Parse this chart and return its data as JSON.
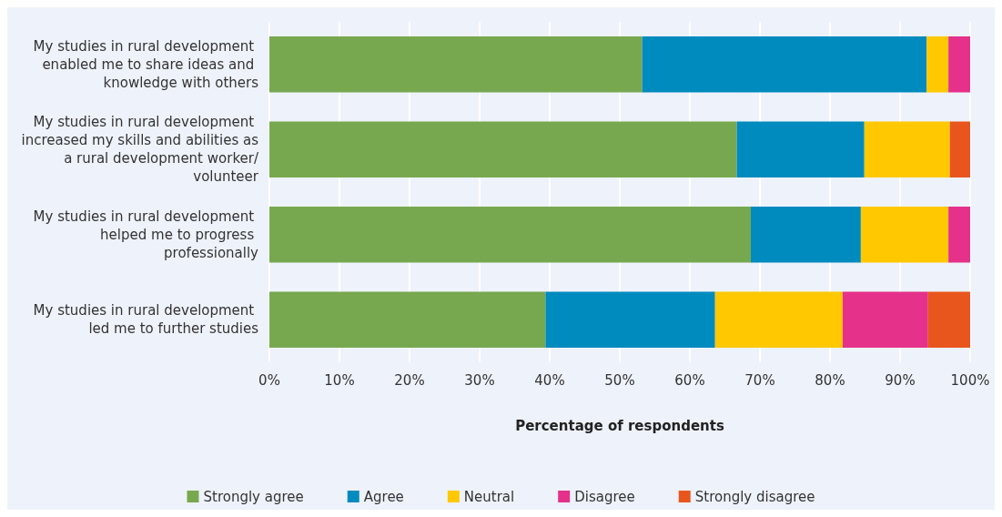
{
  "chart_data": {
    "type": "bar",
    "orientation": "horizontal",
    "stacked": true,
    "xlabel": "Percentage of respondents",
    "categories": [
      "My studies in rural development enabled me to share ideas and knowledge with others",
      "My studies in rural development increased my skills and abilities as a rural development worker/volunteer",
      "My studies in rural development helped me to progress professionally",
      "My studies in rural development led me to further studies"
    ],
    "series": [
      {
        "name": "Strongly agree",
        "color": "#77a84f",
        "values": [
          53.2,
          66.7,
          68.7,
          39.4
        ]
      },
      {
        "name": "Agree",
        "color": "#008bbf",
        "values": [
          40.6,
          18.2,
          15.7,
          24.2
        ]
      },
      {
        "name": "Neutral",
        "color": "#ffc800",
        "values": [
          3.1,
          12.2,
          12.5,
          18.2
        ]
      },
      {
        "name": "Disagree",
        "color": "#e5318a",
        "values": [
          3.1,
          0,
          3.1,
          12.2
        ]
      },
      {
        "name": "Strongly disagree",
        "color": "#e8561e",
        "values": [
          0,
          2.9,
          0,
          6.0
        ]
      }
    ],
    "xlim": [
      0,
      100
    ],
    "xticks": [
      {
        "value": 0,
        "label": "0%"
      },
      {
        "value": 10,
        "label": "10%"
      },
      {
        "value": 20,
        "label": "20%"
      },
      {
        "value": 30,
        "label": "30%"
      },
      {
        "value": 40,
        "label": "40%"
      },
      {
        "value": 50,
        "label": "50%"
      },
      {
        "value": 60,
        "label": "60%"
      },
      {
        "value": 70,
        "label": "70%"
      },
      {
        "value": 80,
        "label": "80%"
      },
      {
        "value": 90,
        "label": "90%"
      },
      {
        "value": 100,
        "label": "100%"
      }
    ],
    "grid": "x",
    "legend": "bottom"
  }
}
